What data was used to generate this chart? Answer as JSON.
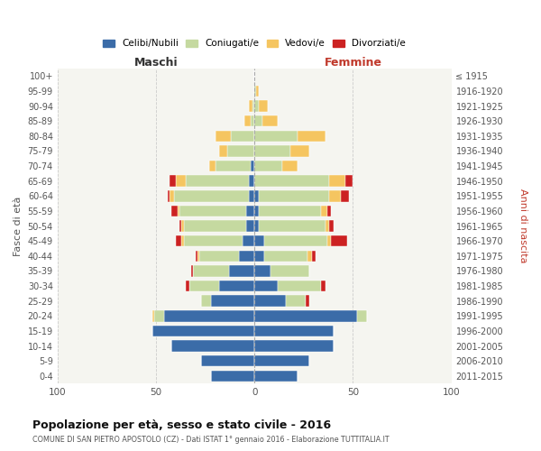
{
  "age_groups": [
    "0-4",
    "5-9",
    "10-14",
    "15-19",
    "20-24",
    "25-29",
    "30-34",
    "35-39",
    "40-44",
    "45-49",
    "50-54",
    "55-59",
    "60-64",
    "65-69",
    "70-74",
    "75-79",
    "80-84",
    "85-89",
    "90-94",
    "95-99",
    "100+"
  ],
  "birth_years": [
    "2011-2015",
    "2006-2010",
    "2001-2005",
    "1996-2000",
    "1991-1995",
    "1986-1990",
    "1981-1985",
    "1976-1980",
    "1971-1975",
    "1966-1970",
    "1961-1965",
    "1956-1960",
    "1951-1955",
    "1946-1950",
    "1941-1945",
    "1936-1940",
    "1931-1935",
    "1926-1930",
    "1921-1925",
    "1916-1920",
    "≤ 1915"
  ],
  "maschi": {
    "celibi": [
      22,
      27,
      42,
      52,
      46,
      22,
      18,
      13,
      8,
      6,
      4,
      4,
      3,
      3,
      2,
      0,
      0,
      0,
      0,
      0,
      0
    ],
    "coniugati": [
      0,
      0,
      0,
      0,
      5,
      5,
      15,
      18,
      20,
      30,
      32,
      34,
      38,
      32,
      18,
      14,
      12,
      2,
      1,
      0,
      0
    ],
    "vedovi": [
      0,
      0,
      0,
      0,
      1,
      0,
      0,
      0,
      1,
      1,
      1,
      1,
      2,
      5,
      3,
      4,
      8,
      3,
      2,
      0,
      0
    ],
    "divorziati": [
      0,
      0,
      0,
      0,
      0,
      0,
      2,
      1,
      1,
      3,
      1,
      3,
      1,
      3,
      0,
      0,
      0,
      0,
      0,
      0,
      0
    ]
  },
  "femmine": {
    "nubili": [
      22,
      28,
      40,
      40,
      52,
      16,
      12,
      8,
      5,
      5,
      2,
      2,
      2,
      0,
      0,
      0,
      0,
      0,
      0,
      0,
      0
    ],
    "coniugate": [
      0,
      0,
      0,
      0,
      5,
      10,
      22,
      20,
      22,
      32,
      34,
      32,
      36,
      38,
      14,
      18,
      22,
      4,
      2,
      1,
      0
    ],
    "vedove": [
      0,
      0,
      0,
      0,
      0,
      0,
      0,
      0,
      2,
      2,
      2,
      3,
      6,
      8,
      8,
      10,
      14,
      8,
      5,
      1,
      0
    ],
    "divorziate": [
      0,
      0,
      0,
      0,
      0,
      2,
      2,
      0,
      2,
      8,
      2,
      2,
      4,
      4,
      0,
      0,
      0,
      0,
      0,
      0,
      0
    ]
  },
  "colors": {
    "celibi": "#3b6ca8",
    "coniugati": "#c5d9a0",
    "vedovi": "#f5c560",
    "divorziati": "#cc2222"
  },
  "title": "Popolazione per età, sesso e stato civile - 2016",
  "subtitle": "COMUNE DI SAN PIETRO APOSTOLO (CZ) - Dati ISTAT 1° gennaio 2016 - Elaborazione TUTTITALIA.IT",
  "xlabel_left": "Maschi",
  "xlabel_right": "Femmine",
  "ylabel_left": "Fasce di età",
  "ylabel_right": "Anni di nascita",
  "xlim": 100,
  "legend_labels": [
    "Celibi/Nubili",
    "Coniugati/e",
    "Vedovi/e",
    "Divorziati/e"
  ],
  "background_color": "#ffffff",
  "plot_bg": "#f5f5f0",
  "grid_color": "#cccccc"
}
